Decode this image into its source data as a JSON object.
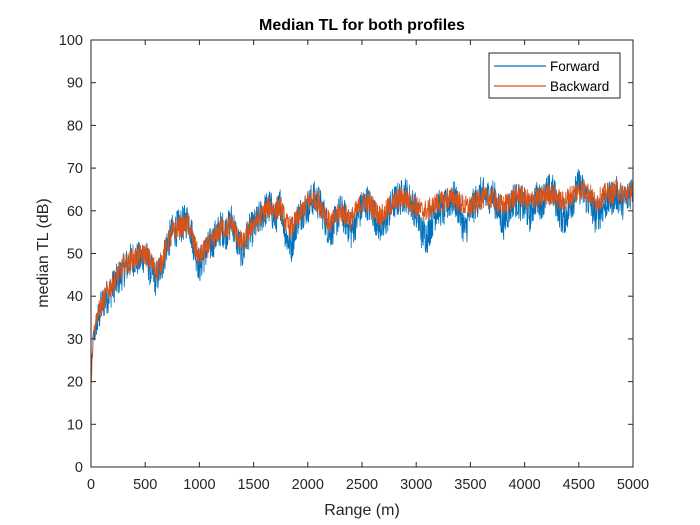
{
  "chart_data": {
    "type": "line",
    "title": "Median TL for both profiles",
    "xlabel": "Range (m)",
    "ylabel": "median TL (dB)",
    "xlim": [
      0,
      5000
    ],
    "ylim": [
      0,
      100
    ],
    "xticks": [
      0,
      500,
      1000,
      1500,
      2000,
      2500,
      3000,
      3500,
      4000,
      4500,
      5000
    ],
    "yticks": [
      0,
      10,
      20,
      30,
      40,
      50,
      60,
      70,
      80,
      90,
      100
    ],
    "grid": false,
    "legend_position": "top-right",
    "series": [
      {
        "name": "Forward",
        "color": "#0072BD",
        "x": [
          0,
          20,
          50,
          100,
          150,
          200,
          250,
          300,
          350,
          400,
          450,
          500,
          550,
          600,
          650,
          700,
          750,
          800,
          850,
          900,
          950,
          1000,
          1050,
          1100,
          1150,
          1200,
          1250,
          1300,
          1350,
          1400,
          1450,
          1500,
          1550,
          1600,
          1650,
          1700,
          1750,
          1800,
          1850,
          1900,
          1950,
          2000,
          2050,
          2100,
          2150,
          2200,
          2250,
          2300,
          2350,
          2400,
          2450,
          2500,
          2550,
          2600,
          2650,
          2700,
          2750,
          2800,
          2850,
          2900,
          2950,
          3000,
          3050,
          3100,
          3150,
          3200,
          3250,
          3300,
          3350,
          3400,
          3450,
          3500,
          3550,
          3600,
          3650,
          3700,
          3750,
          3800,
          3850,
          3900,
          3950,
          4000,
          4050,
          4100,
          4150,
          4200,
          4250,
          4300,
          4350,
          4400,
          4450,
          4500,
          4550,
          4600,
          4650,
          4700,
          4750,
          4800,
          4850,
          4900,
          4950,
          5000
        ],
        "y": [
          20,
          30,
          33,
          38,
          40,
          42,
          44,
          46,
          48,
          49,
          48.5,
          50,
          46,
          44,
          47,
          52,
          55,
          56,
          57,
          58,
          52,
          47,
          50,
          52,
          54,
          56,
          55,
          58,
          53,
          50,
          55,
          56,
          58,
          60,
          61,
          58,
          62,
          54,
          52,
          58,
          60,
          61,
          63,
          62,
          59,
          55,
          57,
          60,
          58,
          55,
          58,
          61,
          62,
          60,
          57,
          56,
          60,
          62,
          63,
          64,
          62,
          60,
          55,
          54,
          58,
          61,
          60,
          62,
          63,
          60,
          55,
          60,
          62,
          64,
          63,
          64,
          61,
          57,
          60,
          63,
          62,
          61,
          59,
          63,
          62,
          64,
          65,
          62,
          58,
          60,
          63,
          66,
          64,
          62,
          59,
          60,
          62,
          63,
          64,
          62,
          63,
          66
        ]
      },
      {
        "name": "Backward",
        "color": "#D95319",
        "x": [
          0,
          20,
          50,
          100,
          150,
          200,
          250,
          300,
          350,
          400,
          450,
          500,
          550,
          600,
          650,
          700,
          750,
          800,
          850,
          900,
          950,
          1000,
          1050,
          1100,
          1150,
          1200,
          1250,
          1300,
          1350,
          1400,
          1450,
          1500,
          1550,
          1600,
          1650,
          1700,
          1750,
          1800,
          1850,
          1900,
          1950,
          2000,
          2050,
          2100,
          2150,
          2200,
          2250,
          2300,
          2350,
          2400,
          2450,
          2500,
          2550,
          2600,
          2650,
          2700,
          2750,
          2800,
          2850,
          2900,
          2950,
          3000,
          3050,
          3100,
          3150,
          3200,
          3250,
          3300,
          3350,
          3400,
          3450,
          3500,
          3550,
          3600,
          3650,
          3700,
          3750,
          3800,
          3850,
          3900,
          3950,
          4000,
          4050,
          4100,
          4150,
          4200,
          4250,
          4300,
          4350,
          4400,
          4450,
          4500,
          4550,
          4600,
          4650,
          4700,
          4750,
          4800,
          4850,
          4900,
          4950,
          5000
        ],
        "y": [
          19,
          31,
          35,
          38,
          41,
          43,
          45,
          47,
          48,
          49,
          49.5,
          50,
          48,
          46,
          48,
          52,
          55,
          56,
          56.5,
          57,
          52,
          49,
          51,
          52,
          54,
          56,
          56,
          57,
          54,
          52,
          55,
          57,
          58,
          60,
          61,
          60,
          61,
          57,
          56,
          58,
          60,
          62,
          63,
          62,
          60,
          57,
          58,
          60,
          59,
          58,
          60,
          62,
          62,
          61,
          59,
          59,
          61,
          62,
          63,
          63,
          62,
          61,
          60,
          60,
          61,
          62,
          62,
          63,
          63,
          62,
          61,
          61,
          62,
          63,
          63,
          63,
          62,
          61,
          62,
          63,
          64,
          63,
          62,
          63,
          63,
          64,
          64,
          63,
          62,
          63,
          64,
          65,
          65,
          64,
          62,
          63,
          64,
          64,
          65,
          64,
          64,
          65
        ]
      }
    ]
  }
}
